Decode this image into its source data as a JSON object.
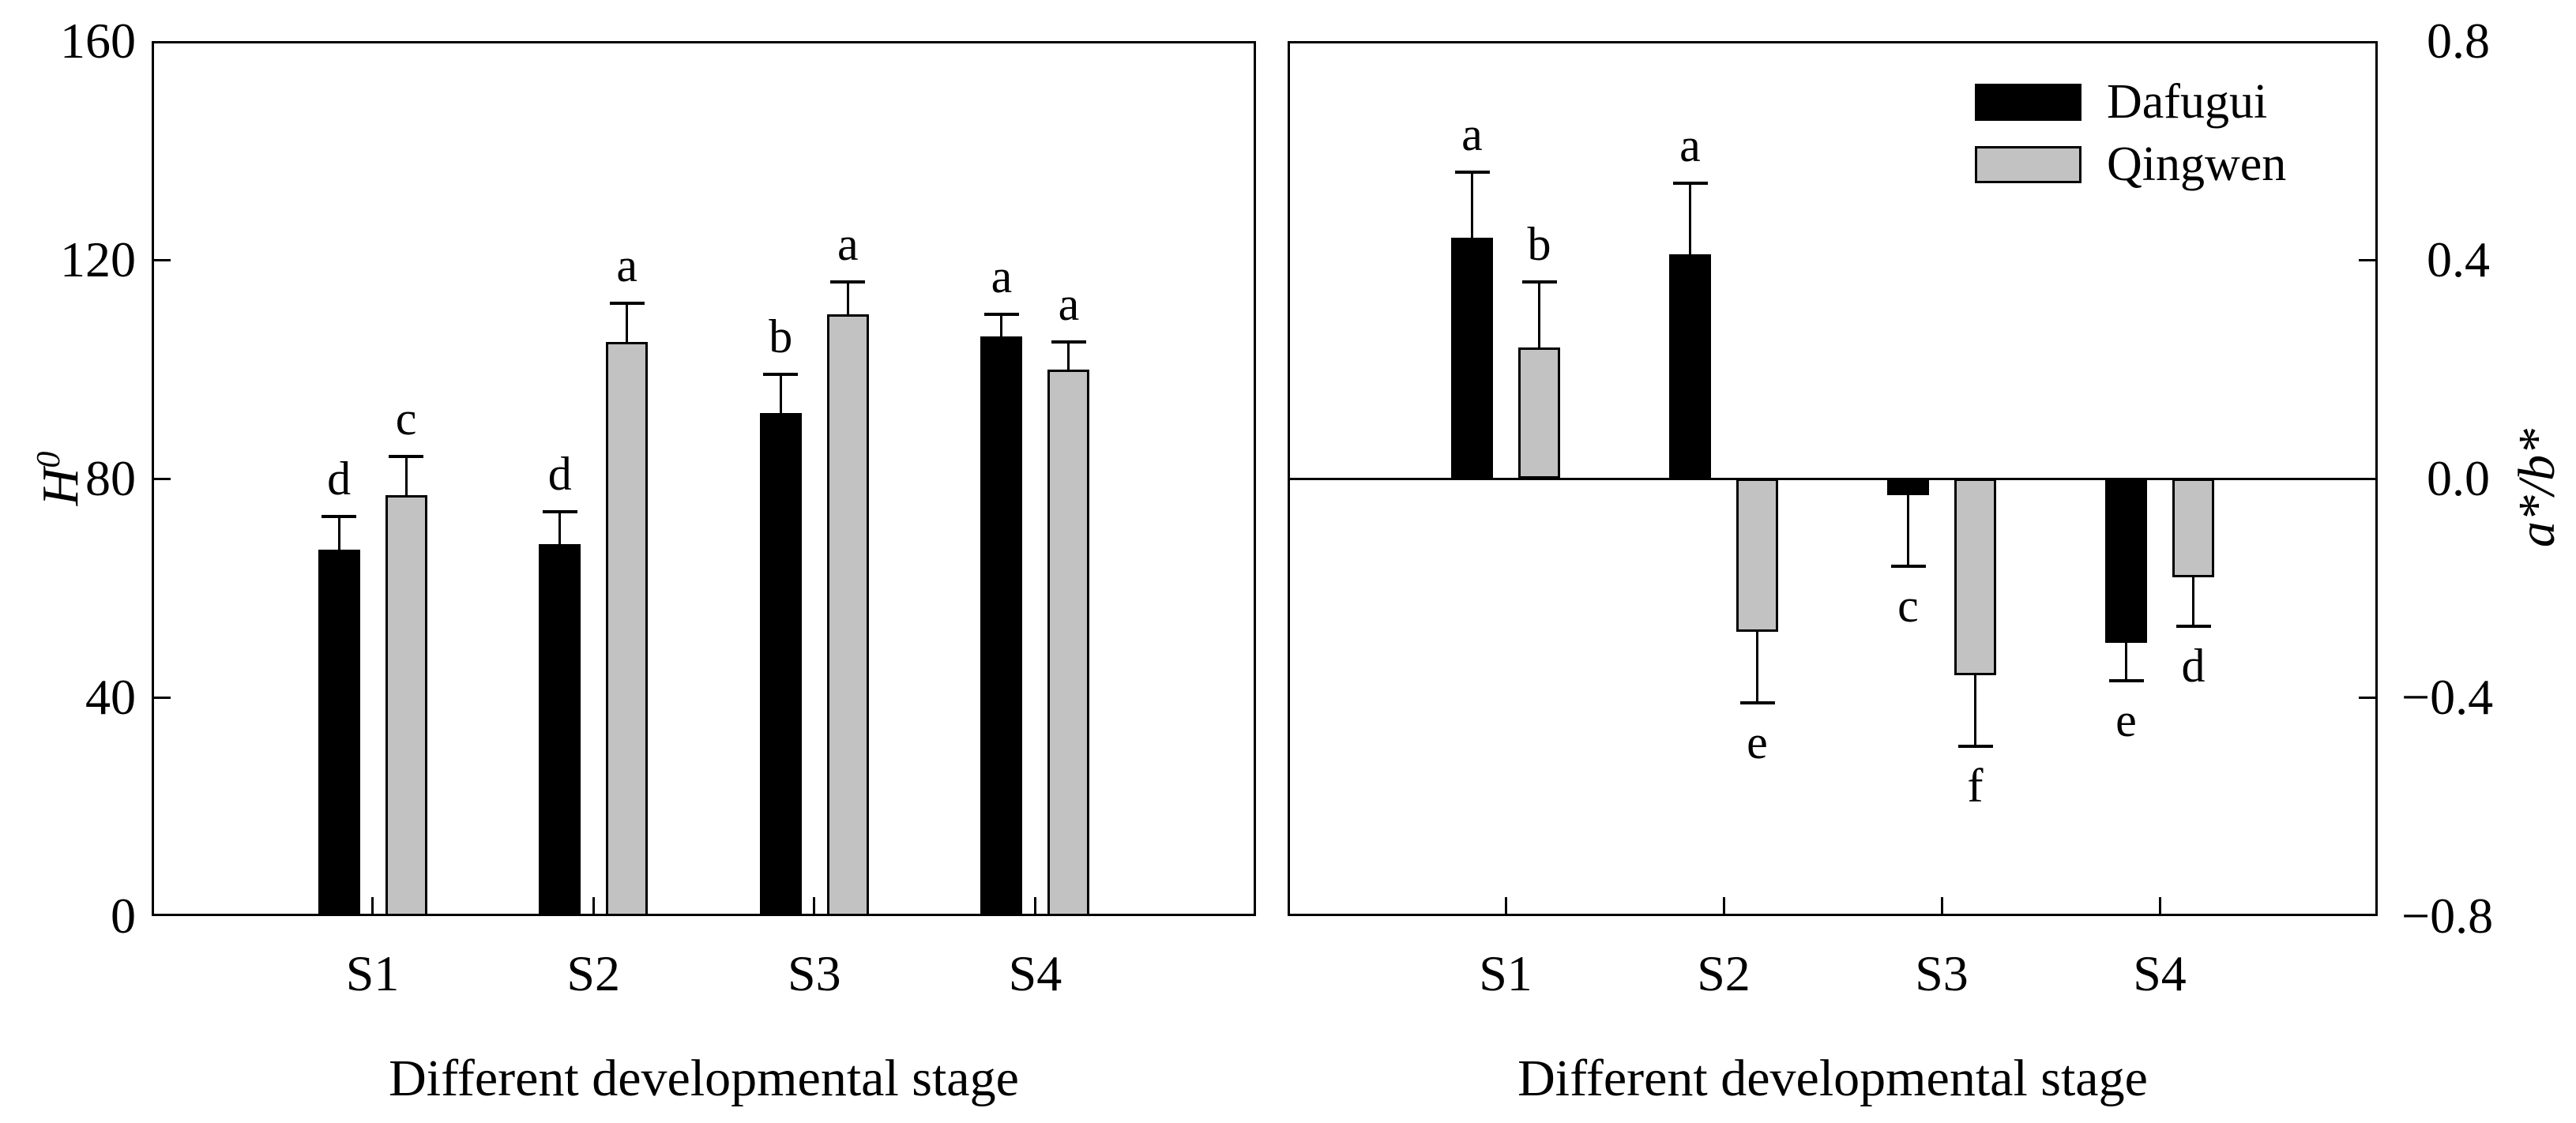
{
  "figure": {
    "background": "#ffffff"
  },
  "colors": {
    "dafugui": "#000000",
    "qingwen": "#c2c2c2",
    "axis": "#000000"
  },
  "legend": {
    "items": [
      {
        "label": "Dafugui",
        "color_key": "dafugui"
      },
      {
        "label": "Qingwen",
        "color_key": "qingwen"
      }
    ],
    "position": "top-right-inside-right-panel"
  },
  "chart_data": [
    {
      "type": "bar",
      "panel": "left",
      "title": "",
      "xlabel": "Different developmental stage",
      "ylabel_main": "H",
      "ylabel_sup": "0",
      "categories": [
        "S1",
        "S2",
        "S3",
        "S4"
      ],
      "series": [
        {
          "name": "Dafugui",
          "color_key": "dafugui",
          "values": [
            67,
            68,
            92,
            106
          ],
          "errors": [
            6,
            6,
            7,
            4
          ],
          "letters": [
            "d",
            "d",
            "b",
            "a"
          ]
        },
        {
          "name": "Qingwen",
          "color_key": "qingwen",
          "values": [
            77,
            105,
            110,
            100
          ],
          "errors": [
            7,
            7,
            6,
            5
          ],
          "letters": [
            "c",
            "a",
            "a",
            "a"
          ]
        }
      ],
      "ylim": [
        0,
        160
      ],
      "yticks": [
        {
          "v": 0,
          "label": "0"
        },
        {
          "v": 40,
          "label": "40"
        },
        {
          "v": 80,
          "label": "80"
        },
        {
          "v": 120,
          "label": "120"
        },
        {
          "v": 160,
          "label": "160"
        }
      ],
      "axis_side": "left",
      "grid": false,
      "zero_line": false,
      "legend_visible": false
    },
    {
      "type": "bar",
      "panel": "right",
      "title": "",
      "xlabel": "Different developmental stage",
      "ylabel": "a*/b*",
      "categories": [
        "S1",
        "S2",
        "S3",
        "S4"
      ],
      "series": [
        {
          "name": "Dafugui",
          "color_key": "dafugui",
          "values": [
            0.44,
            0.41,
            -0.03,
            -0.3
          ],
          "errors": [
            0.12,
            0.13,
            0.13,
            0.07
          ],
          "letters": [
            "a",
            "a",
            "c",
            "e"
          ]
        },
        {
          "name": "Qingwen",
          "color_key": "qingwen",
          "values": [
            0.24,
            -0.28,
            -0.36,
            -0.18
          ],
          "errors": [
            0.12,
            0.13,
            0.13,
            0.09
          ],
          "letters": [
            "b",
            "e",
            "f",
            "d"
          ]
        }
      ],
      "ylim": [
        -0.8,
        0.8
      ],
      "yticks": [
        {
          "v": -0.8,
          "label": "−0.8"
        },
        {
          "v": -0.4,
          "label": "−0.4"
        },
        {
          "v": 0,
          "label": "0.0"
        },
        {
          "v": 0.4,
          "label": "0.4"
        },
        {
          "v": 0.8,
          "label": "0.8"
        }
      ],
      "axis_side": "right",
      "grid": false,
      "zero_line": true,
      "legend_visible": true
    }
  ]
}
